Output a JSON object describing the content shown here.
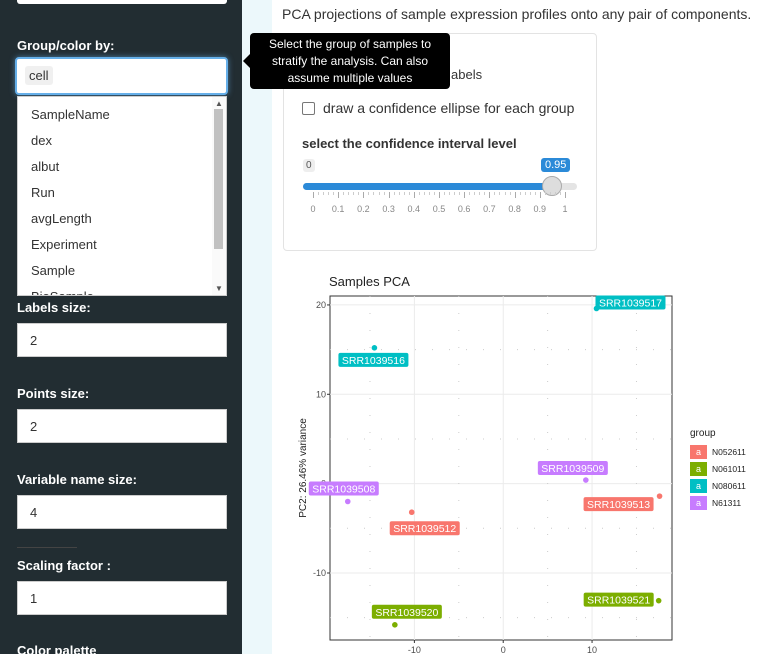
{
  "sidebar": {
    "group_label": "Group/color by:",
    "group_value": "cell",
    "dropdown_options": [
      "SampleName",
      "dex",
      "albut",
      "Run",
      "avgLength",
      "Experiment",
      "Sample",
      "BioSample"
    ],
    "labels_size_label": "Labels size:",
    "labels_size_value": "2",
    "points_size_label": "Points size:",
    "points_size_value": "2",
    "varname_size_label": "Variable name size:",
    "varname_size_value": "4",
    "scaling_label": "Scaling factor :",
    "scaling_value": "1",
    "palette_label": "Color palette"
  },
  "tooltip": {
    "text": "Select the group of samples to stratify the analysis. Can also assume multiple values"
  },
  "main": {
    "description": "PCA projections of sample expression profiles onto any pair of components.",
    "labels_fragment": "abels",
    "ellipse_label": "draw a confidence ellipse for each group",
    "ci_label": "select the confidence interval level",
    "slider": {
      "min_label": "0",
      "value_label": "0.95",
      "value": 0.95,
      "ticks": [
        "0",
        "0.1",
        "0.2",
        "0.3",
        "0.4",
        "0.5",
        "0.6",
        "0.7",
        "0.8",
        "0.9",
        "1"
      ]
    }
  },
  "colors": {
    "sidebar_bg": "#222d32",
    "accent": "#2b8ad8",
    "N052611": "#f8766d",
    "N061011": "#7cae00",
    "N080611": "#00bfc4",
    "N61311": "#c77cff"
  },
  "chart_data": {
    "type": "scatter",
    "title": "Samples PCA",
    "ylabel": "PC2: 26.46% variance",
    "xlabel": "",
    "xlim": [
      -19.5,
      19
    ],
    "ylim": [
      -17.5,
      21
    ],
    "x_ticks": [
      "-10",
      "0",
      "10"
    ],
    "y_ticks": [
      "20",
      "10",
      "0",
      "-10"
    ],
    "x_tick_values": [
      -10,
      0,
      10
    ],
    "y_tick_values": [
      20,
      10,
      0,
      -10
    ],
    "legend_title": "group",
    "legend_position": "right",
    "legend_key_letter": "a",
    "groups": [
      {
        "name": "N052611",
        "color": "#f8766d"
      },
      {
        "name": "N061011",
        "color": "#7cae00"
      },
      {
        "name": "N080611",
        "color": "#00bfc4"
      },
      {
        "name": "N61311",
        "color": "#c77cff"
      }
    ],
    "points": [
      {
        "label": "SRR1039517",
        "x": 10.5,
        "y": 19.6,
        "group": "N080611"
      },
      {
        "label": "SRR1039516",
        "x": -14.5,
        "y": 15.2,
        "group": "N080611"
      },
      {
        "label": "SRR1039509",
        "x": 9.3,
        "y": 0.4,
        "group": "N61311"
      },
      {
        "label": "SRR1039508",
        "x": -17.5,
        "y": -2.0,
        "group": "N61311"
      },
      {
        "label": "SRR1039513",
        "x": 17.6,
        "y": -1.4,
        "group": "N052611"
      },
      {
        "label": "SRR1039512",
        "x": -10.3,
        "y": -3.2,
        "group": "N052611"
      },
      {
        "label": "SRR1039521",
        "x": 17.5,
        "y": -13.1,
        "group": "N061011"
      },
      {
        "label": "SRR1039520",
        "x": -12.2,
        "y": -15.8,
        "group": "N061011"
      }
    ]
  }
}
